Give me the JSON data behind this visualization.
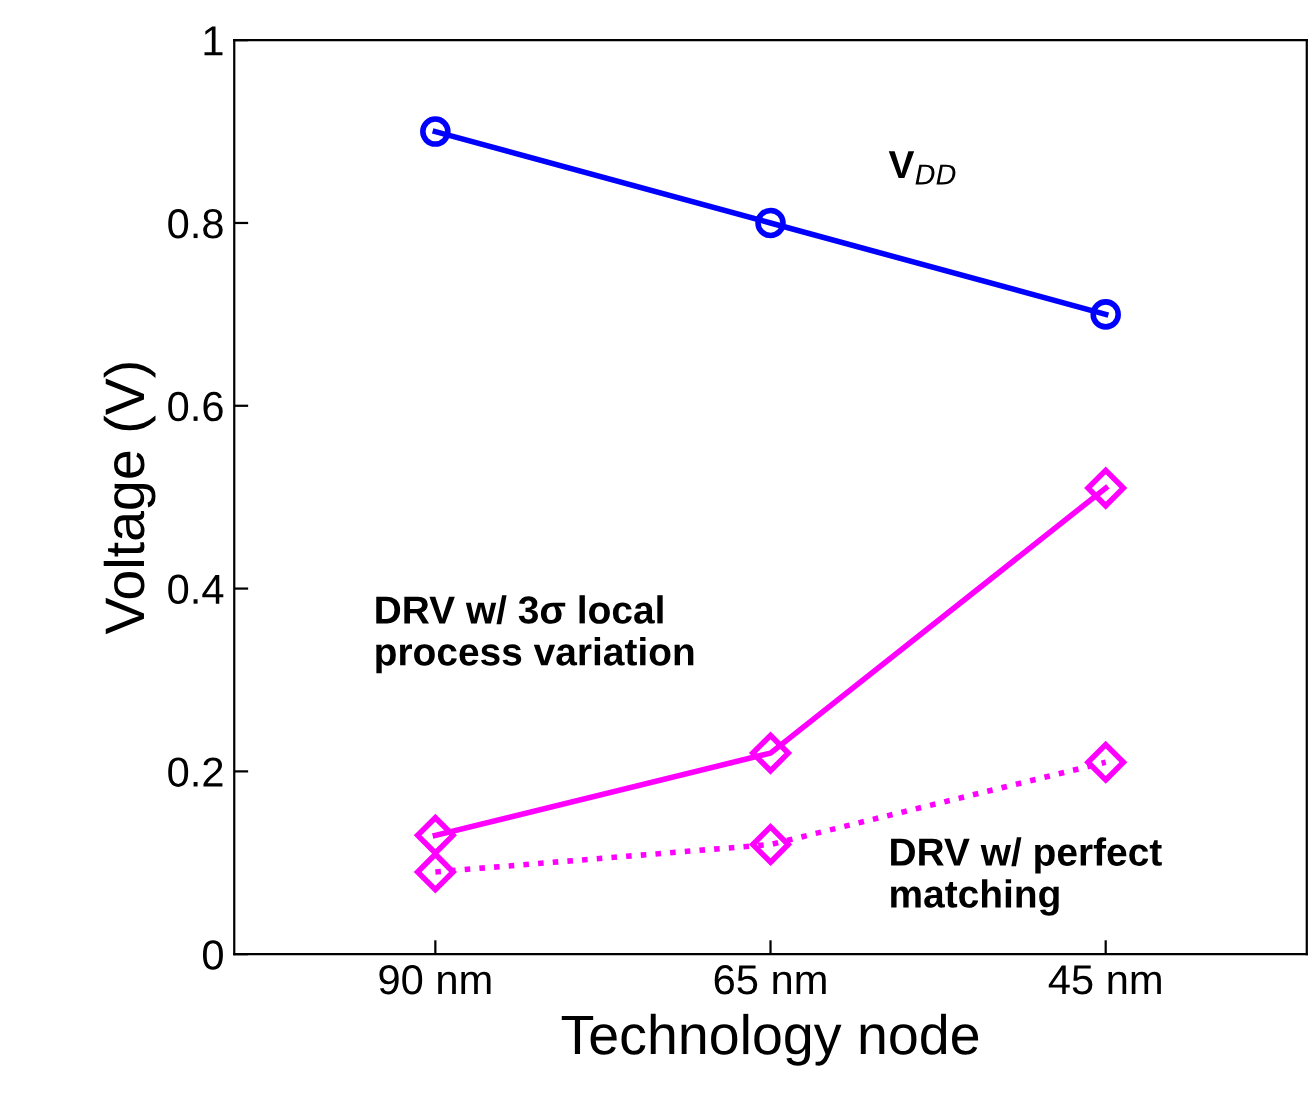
{
  "chart_data": {
    "type": "line",
    "xlabel": "Technology node",
    "ylabel": "Voltage (V)",
    "categories": [
      "90 nm",
      "65 nm",
      "45 nm"
    ],
    "ylim": [
      0,
      1
    ],
    "yticks": [
      0,
      0.2,
      0.4,
      0.6,
      0.8,
      1
    ],
    "grid": false,
    "legend": false,
    "series": [
      {
        "name": "V$_{DD}$",
        "color": "#0000ff",
        "marker": "circle",
        "line_style": "solid",
        "values": [
          0.9,
          0.8,
          0.7
        ]
      },
      {
        "name": "DRV w/ 3σ local\nprocess variation",
        "color": "#ff00ff",
        "marker": "diamond",
        "line_style": "solid",
        "values": [
          0.13,
          0.22,
          0.51
        ]
      },
      {
        "name": "DRV w/ perfect\nmatching",
        "color": "#ff00ff",
        "marker": "diamond",
        "line_style": "dotted",
        "values": [
          0.09,
          0.12,
          0.21
        ]
      }
    ]
  }
}
